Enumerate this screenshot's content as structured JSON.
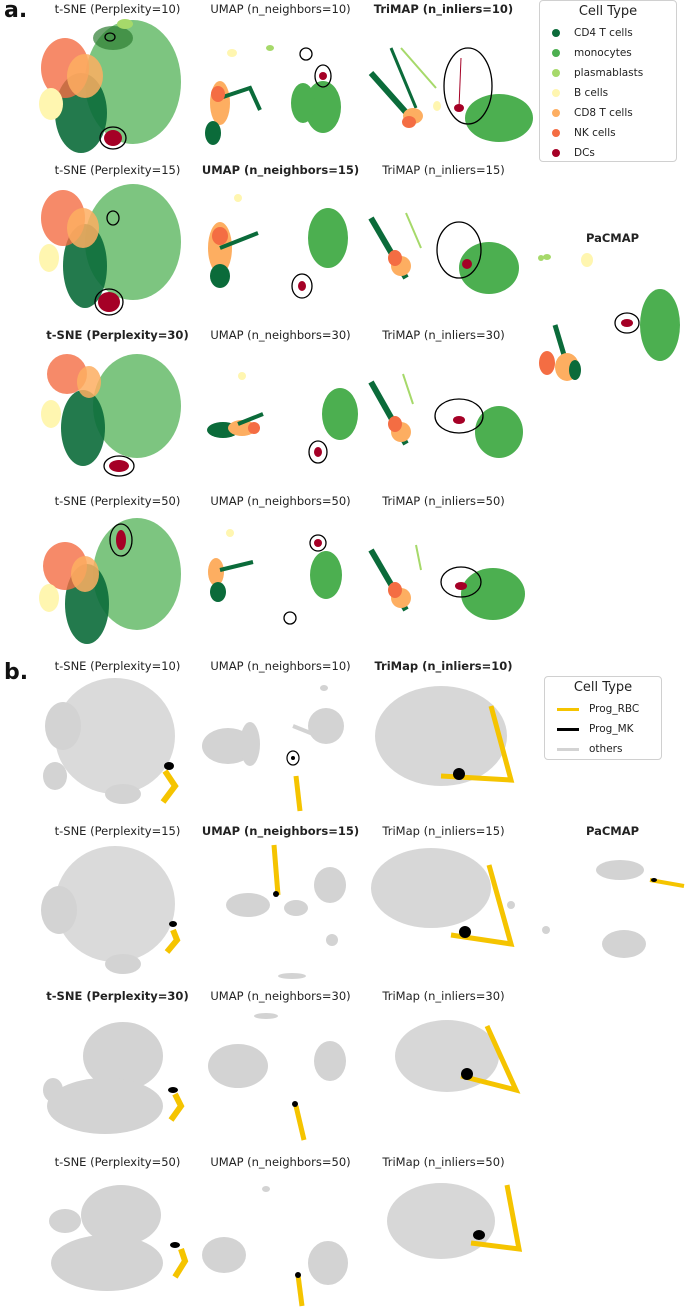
{
  "panels": {
    "a": {
      "label": "a.",
      "titles": {
        "r0": [
          "t-SNE (Perplexity=10)",
          "UMAP (n_neighbors=10)",
          "TriMAP (n_inliers=10)"
        ],
        "r1": [
          "t-SNE (Perplexity=15)",
          "UMAP (n_neighbors=15)",
          "TriMAP (n_inliers=15)"
        ],
        "r2": [
          "t-SNE (Perplexity=30)",
          "UMAP (n_neighbors=30)",
          "TriMAP (n_inliers=30)"
        ],
        "r3": [
          "t-SNE (Perplexity=50)",
          "UMAP (n_neighbors=50)",
          "TriMAP (n_inliers=50)"
        ]
      },
      "pacmap": "PaCMAP",
      "legend": {
        "title": "Cell Type",
        "items": [
          {
            "label": "CD4 T cells",
            "color": "#0b6b3a"
          },
          {
            "label": "monocytes",
            "color": "#4caf50"
          },
          {
            "label": "plasmablasts",
            "color": "#a6d96a"
          },
          {
            "label": "B cells",
            "color": "#fff6b0"
          },
          {
            "label": "CD8 T cells",
            "color": "#fdae61"
          },
          {
            "label": "NK cells",
            "color": "#f46d43"
          },
          {
            "label": "DCs",
            "color": "#a50026"
          }
        ]
      }
    },
    "b": {
      "label": "b.",
      "titles": {
        "r0": [
          "t-SNE (Perplexity=10)",
          "UMAP (n_neighbors=10)",
          "TriMap (n_inliers=10)"
        ],
        "r1": [
          "t-SNE (Perplexity=15)",
          "UMAP (n_neighbors=15)",
          "TriMap (n_inliers=15)"
        ],
        "r2": [
          "t-SNE (Perplexity=30)",
          "UMAP (n_neighbors=30)",
          "TriMap (n_inliers=30)"
        ],
        "r3": [
          "t-SNE (Perplexity=50)",
          "UMAP (n_neighbors=50)",
          "TriMap (n_inliers=50)"
        ]
      },
      "pacmap": "PaCMAP",
      "legend": {
        "title": "Cell Type",
        "items": [
          {
            "label": "Prog_RBC",
            "color": "#f5c400"
          },
          {
            "label": "Prog_MK",
            "color": "#000000"
          },
          {
            "label": "others",
            "color": "#d3d3d3"
          }
        ]
      }
    }
  }
}
